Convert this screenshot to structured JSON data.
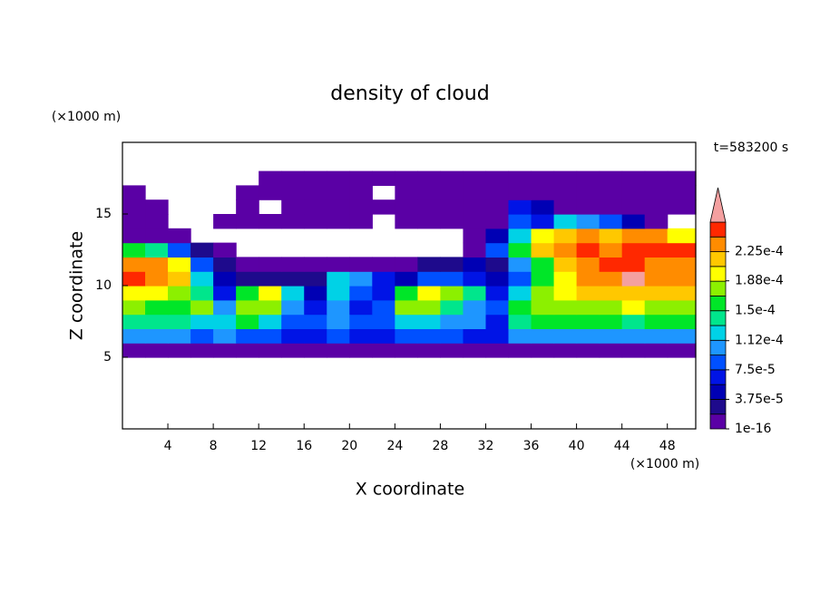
{
  "chart_data": {
    "type": "contour",
    "title": "density of cloud",
    "x_label": "X coordinate",
    "y_label": "Z coordinate",
    "x_unit": "(×1000 m)",
    "y_unit": "(×1000 m)",
    "annotation": "t=583200 s",
    "xlim": [
      0,
      50.5
    ],
    "ylim": [
      0,
      20
    ],
    "xticks": [
      4,
      8,
      12,
      16,
      20,
      24,
      28,
      32,
      36,
      40,
      44,
      48
    ],
    "yticks": [
      5,
      10,
      15
    ],
    "x": [
      1,
      3,
      5,
      7,
      9,
      11,
      13,
      15,
      17,
      19,
      21,
      23,
      25,
      27,
      29,
      31,
      33,
      35,
      37,
      39,
      41,
      43,
      45,
      47,
      49
    ],
    "y": [
      5.5,
      6.5,
      7.5,
      8.5,
      9.5,
      10.5,
      11.5,
      12.5,
      13.5,
      14.5,
      15.5,
      16.5,
      17.5
    ],
    "z": [
      [
        9.4e-06,
        9.4e-06,
        9.4e-06,
        9.4e-06,
        9.4e-06,
        9.4e-06,
        9.4e-06,
        9.4e-06,
        9.4e-06,
        9.4e-06,
        9.4e-06,
        9.4e-06,
        9.4e-06,
        9.4e-06,
        9.4e-06,
        9.4e-06,
        9.4e-06,
        9.4e-06,
        9.4e-06,
        9.4e-06,
        9.4e-06,
        9.4e-06,
        9.4e-06,
        9.4e-06,
        9.4e-06
      ],
      [
        0.000103,
        0.000103,
        0.000103,
        8.44e-05,
        0.000103,
        8.44e-05,
        8.44e-05,
        6.56e-05,
        6.56e-05,
        8.44e-05,
        6.56e-05,
        6.56e-05,
        8.44e-05,
        8.44e-05,
        8.44e-05,
        6.56e-05,
        6.56e-05,
        0.000103,
        0.000103,
        0.000103,
        0.000103,
        0.000103,
        0.000103,
        0.000103,
        0.000103
      ],
      [
        0.000141,
        0.000141,
        0.000141,
        0.000122,
        0.000122,
        0.000159,
        0.000122,
        8.44e-05,
        8.44e-05,
        0.000103,
        8.44e-05,
        8.44e-05,
        0.000122,
        0.000122,
        0.000103,
        0.000103,
        6.56e-05,
        0.000141,
        0.000159,
        0.000159,
        0.000159,
        0.000159,
        0.000141,
        0.000159,
        0.000159
      ],
      [
        0.000178,
        0.000159,
        0.000159,
        0.000178,
        0.000103,
        0.000178,
        0.000178,
        0.000103,
        6.56e-05,
        0.000103,
        6.56e-05,
        8.44e-05,
        0.000178,
        0.000178,
        0.000141,
        0.000103,
        8.44e-05,
        0.000159,
        0.000178,
        0.000178,
        0.000178,
        0.000178,
        0.000197,
        0.000178,
        0.000178
      ],
      [
        0.000197,
        0.000197,
        0.000178,
        0.000141,
        6.56e-05,
        0.000159,
        0.000197,
        0.000122,
        4.69e-05,
        0.000122,
        8.44e-05,
        6.56e-05,
        0.000159,
        0.000197,
        0.000178,
        0.000141,
        6.56e-05,
        0.000122,
        0.000178,
        0.000197,
        0.000216,
        0.000216,
        0.000216,
        0.000216,
        0.000216
      ],
      [
        0.000253,
        0.000234,
        0.000216,
        0.000122,
        4.69e-05,
        2.81e-05,
        2.81e-05,
        2.81e-05,
        2.81e-05,
        0.000122,
        0.000103,
        6.56e-05,
        4.69e-05,
        8.44e-05,
        8.44e-05,
        6.56e-05,
        4.69e-05,
        8.44e-05,
        0.000159,
        0.000197,
        0.000234,
        0.000234,
        0.00027,
        0.000234,
        0.000234
      ],
      [
        0.000234,
        0.000234,
        0.000197,
        8.44e-05,
        2.81e-05,
        9.4e-06,
        9.4e-06,
        9.4e-06,
        9.4e-06,
        9.4e-06,
        9.4e-06,
        9.4e-06,
        9.4e-06,
        2.81e-05,
        2.81e-05,
        4.69e-05,
        2.81e-05,
        0.000103,
        0.000159,
        0.000216,
        0.000234,
        0.000253,
        0.000253,
        0.000234,
        0.000234
      ],
      [
        0.000159,
        0.000141,
        8.44e-05,
        2.81e-05,
        9.4e-06,
        null,
        null,
        null,
        null,
        null,
        null,
        null,
        null,
        null,
        null,
        9.4e-06,
        8.44e-05,
        0.000159,
        0.000216,
        0.000234,
        0.000253,
        0.000234,
        0.000253,
        0.000253,
        0.000253
      ],
      [
        9.4e-06,
        9.4e-06,
        9.4e-06,
        null,
        null,
        null,
        null,
        null,
        null,
        null,
        null,
        null,
        null,
        null,
        null,
        9.4e-06,
        4.69e-05,
        0.000122,
        0.000197,
        0.000216,
        0.000234,
        0.000216,
        0.000234,
        0.000234,
        0.000197
      ],
      [
        9.4e-06,
        9.4e-06,
        null,
        null,
        9.4e-06,
        9.4e-06,
        9.4e-06,
        9.4e-06,
        9.4e-06,
        9.4e-06,
        9.4e-06,
        null,
        9.4e-06,
        9.4e-06,
        9.4e-06,
        9.4e-06,
        9.4e-06,
        8.44e-05,
        6.56e-05,
        0.000122,
        0.000103,
        8.44e-05,
        4.69e-05,
        9.4e-06,
        null
      ],
      [
        9.4e-06,
        9.4e-06,
        null,
        null,
        null,
        9.4e-06,
        null,
        9.4e-06,
        9.4e-06,
        9.4e-06,
        9.4e-06,
        9.4e-06,
        9.4e-06,
        9.4e-06,
        9.4e-06,
        9.4e-06,
        9.4e-06,
        6.56e-05,
        4.69e-05,
        9.4e-06,
        9.4e-06,
        9.4e-06,
        9.4e-06,
        9.4e-06,
        9.4e-06
      ],
      [
        9.4e-06,
        null,
        null,
        null,
        null,
        9.4e-06,
        9.4e-06,
        9.4e-06,
        9.4e-06,
        9.4e-06,
        9.4e-06,
        null,
        9.4e-06,
        9.4e-06,
        9.4e-06,
        9.4e-06,
        9.4e-06,
        9.4e-06,
        9.4e-06,
        9.4e-06,
        9.4e-06,
        9.4e-06,
        9.4e-06,
        9.4e-06,
        9.4e-06
      ],
      [
        null,
        null,
        null,
        null,
        null,
        null,
        9.4e-06,
        9.4e-06,
        9.4e-06,
        9.4e-06,
        9.4e-06,
        9.4e-06,
        9.4e-06,
        9.4e-06,
        9.4e-06,
        9.4e-06,
        9.4e-06,
        9.4e-06,
        9.4e-06,
        9.4e-06,
        9.4e-06,
        9.4e-06,
        9.4e-06,
        9.4e-06,
        9.4e-06
      ]
    ],
    "levels": [
      1e-16,
      1.875e-05,
      3.75e-05,
      5.625e-05,
      7.5e-05,
      9.375e-05,
      0.0001125,
      0.00013125,
      0.00015,
      0.00016875,
      0.0001875,
      0.00020625,
      0.000225,
      0.00024375,
      0.0002625
    ],
    "colors": [
      "#5a00a5",
      "#1e0a8c",
      "#0000b4",
      "#0014e6",
      "#0050ff",
      "#1e96ff",
      "#00d2e6",
      "#00e68c",
      "#00e628",
      "#8cf000",
      "#ffff00",
      "#ffc800",
      "#ff8c00",
      "#ff2800"
    ],
    "over_color": "#f4a0a0",
    "colorbar_ticks": [
      1e-16,
      {
        "value": 3.75e-05,
        "label": "3.75e-5"
      },
      {
        "value": 7.5e-05,
        "label": "7.5e-5"
      },
      {
        "value": 0.000112,
        "label": "1.12e-4"
      },
      {
        "value": 0.00015,
        "label": "1.5e-4"
      },
      {
        "value": 0.000188,
        "label": "1.88e-4"
      },
      {
        "value": 0.000225,
        "label": "2.25e-4"
      }
    ]
  }
}
